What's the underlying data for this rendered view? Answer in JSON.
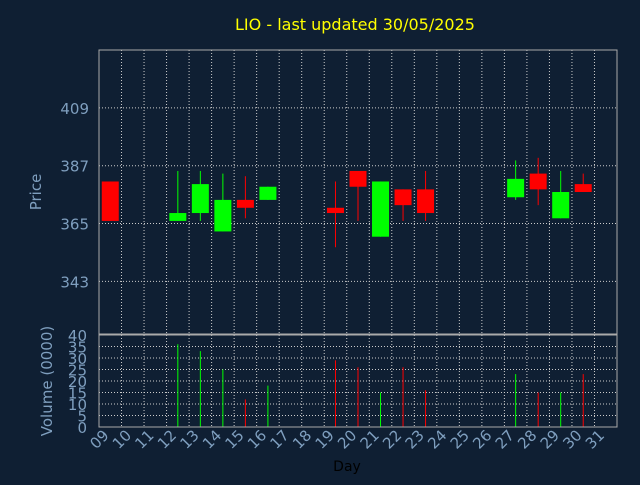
{
  "colors": {
    "background": "#0f1f33",
    "title": "#ffff00",
    "axis_text": "#7f9fbf",
    "axis_line": "#aaaaaa",
    "grid": "#cccccc",
    "up": "#00ff00",
    "down": "#ff0000",
    "day_label": "#000000"
  },
  "chart_data": [
    {
      "type": "candlestick",
      "title": "LIO - last updated 30/05/2025",
      "xlabel": "",
      "ylabel": "Price",
      "ylim": [
        323,
        431
      ],
      "yticks": [
        343,
        365,
        387,
        409
      ],
      "grid": true,
      "categories": [
        "09",
        "10",
        "11",
        "12",
        "13",
        "14",
        "15",
        "16",
        "17",
        "18",
        "19",
        "20",
        "21",
        "22",
        "23",
        "24",
        "25",
        "26",
        "27",
        "28",
        "29",
        "30",
        "31"
      ],
      "candles": [
        {
          "day": "09",
          "open": 381,
          "close": 366,
          "high": 381,
          "low": 366
        },
        {
          "day": "12",
          "open": 366,
          "close": 369,
          "high": 385,
          "low": 366
        },
        {
          "day": "13",
          "open": 369,
          "close": 380,
          "high": 385,
          "low": 366
        },
        {
          "day": "14",
          "open": 362,
          "close": 374,
          "high": 384,
          "low": 362
        },
        {
          "day": "15",
          "open": 374,
          "close": 371,
          "high": 383,
          "low": 367
        },
        {
          "day": "16",
          "open": 374,
          "close": 379,
          "high": 379,
          "low": 374
        },
        {
          "day": "19",
          "open": 371,
          "close": 369,
          "high": 381,
          "low": 356
        },
        {
          "day": "20",
          "open": 385,
          "close": 379,
          "high": 385,
          "low": 366
        },
        {
          "day": "21",
          "open": 360,
          "close": 381,
          "high": 381,
          "low": 360
        },
        {
          "day": "22",
          "open": 378,
          "close": 372,
          "high": 378,
          "low": 366
        },
        {
          "day": "23",
          "open": 378,
          "close": 369,
          "high": 385,
          "low": 366
        },
        {
          "day": "27",
          "open": 375,
          "close": 382,
          "high": 389,
          "low": 374
        },
        {
          "day": "28",
          "open": 384,
          "close": 378,
          "high": 390,
          "low": 372
        },
        {
          "day": "29",
          "open": 367,
          "close": 377,
          "high": 385,
          "low": 367
        },
        {
          "day": "30",
          "open": 380,
          "close": 377,
          "high": 384,
          "low": 377
        }
      ]
    },
    {
      "type": "bar",
      "title": "",
      "xlabel": "Day",
      "ylabel": "Volume (0000)",
      "ylim": [
        0,
        40
      ],
      "yticks": [
        0,
        5,
        10,
        15,
        20,
        25,
        30,
        35,
        40
      ],
      "grid": true,
      "categories": [
        "09",
        "10",
        "11",
        "12",
        "13",
        "14",
        "15",
        "16",
        "17",
        "18",
        "19",
        "20",
        "21",
        "22",
        "23",
        "24",
        "25",
        "26",
        "27",
        "28",
        "29",
        "30",
        "31"
      ],
      "bars": [
        {
          "day": "12",
          "value": 36,
          "direction": "up"
        },
        {
          "day": "13",
          "value": 33,
          "direction": "up"
        },
        {
          "day": "14",
          "value": 25,
          "direction": "up"
        },
        {
          "day": "15",
          "value": 12,
          "direction": "down"
        },
        {
          "day": "16",
          "value": 18,
          "direction": "up"
        },
        {
          "day": "19",
          "value": 29,
          "direction": "down"
        },
        {
          "day": "20",
          "value": 26,
          "direction": "down"
        },
        {
          "day": "21",
          "value": 15,
          "direction": "up"
        },
        {
          "day": "22",
          "value": 26,
          "direction": "down"
        },
        {
          "day": "23",
          "value": 16,
          "direction": "down"
        },
        {
          "day": "27",
          "value": 23,
          "direction": "up"
        },
        {
          "day": "28",
          "value": 15,
          "direction": "down"
        },
        {
          "day": "29",
          "value": 15,
          "direction": "up"
        },
        {
          "day": "30",
          "value": 23,
          "direction": "down"
        }
      ]
    }
  ]
}
